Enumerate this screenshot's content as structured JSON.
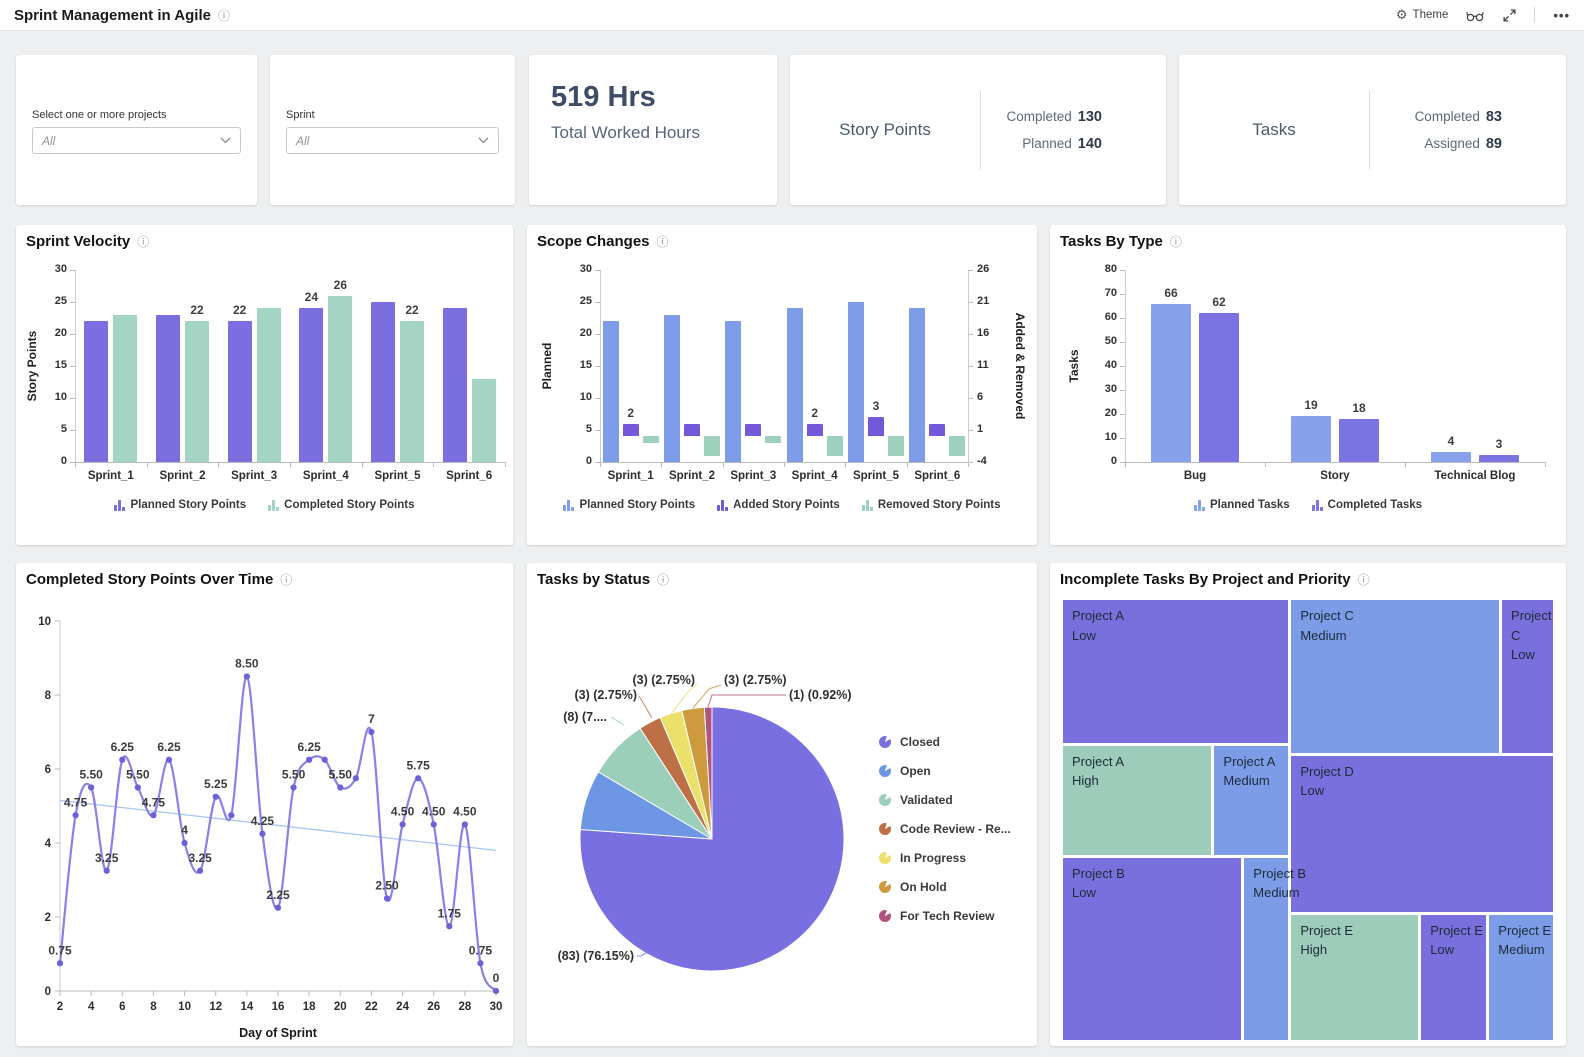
{
  "header": {
    "title": "Sprint Management in Agile",
    "actions": {
      "theme_label": "Theme"
    }
  },
  "filters": {
    "projects": {
      "label": "Select one or more projects",
      "value": "All"
    },
    "sprint": {
      "label": "Sprint",
      "value": "All"
    }
  },
  "kpis": {
    "worked_hours": {
      "value": "519 Hrs",
      "label": "Total Worked Hours"
    },
    "story_points": {
      "title": "Story Points",
      "completed_label": "Completed",
      "completed_value": "130",
      "planned_label": "Planned",
      "planned_value": "140"
    },
    "tasks": {
      "title": "Tasks",
      "completed_label": "Completed",
      "completed_value": "83",
      "assigned_label": "Assigned",
      "assigned_value": "89"
    }
  },
  "colors": {
    "background": "#edeff0",
    "card": "#ffffff",
    "accent_purple": "#7b6fe0",
    "accent_periwinkle": "#7f9ceb",
    "accent_green": "#a4d4c3",
    "treemap": {
      "purple": "#7a70dd",
      "blue": "#7c9ce8",
      "green": "#9dccba"
    }
  },
  "chart_data": [
    {
      "id": "sprint-velocity",
      "type": "bar",
      "title": "Sprint Velocity",
      "ylabel": "Story Points",
      "ylim": [
        0,
        30
      ],
      "yticks": [
        0,
        5,
        10,
        15,
        20,
        25,
        30
      ],
      "grid": false,
      "legend_position": "bottom",
      "categories": [
        "Sprint_1",
        "Sprint_2",
        "Sprint_3",
        "Sprint_4",
        "Sprint_5",
        "Sprint_6"
      ],
      "series": [
        {
          "name": "Planned Story Points",
          "color": "#7b6fe0",
          "values": [
            22,
            23,
            22,
            24,
            25,
            24
          ],
          "labels": [
            null,
            null,
            "22",
            "24",
            null,
            null
          ]
        },
        {
          "name": "Completed Story Points",
          "color": "#a4d4c3",
          "values": [
            23,
            22,
            24,
            26,
            22,
            13
          ],
          "labels": [
            null,
            "22",
            null,
            "26",
            "22",
            null
          ]
        }
      ]
    },
    {
      "id": "scope-changes",
      "type": "bar-dual",
      "title": "Scope Changes",
      "ylabel": "Planned",
      "y2label": "Added & Removed",
      "ylim": [
        0,
        30
      ],
      "yticks": [
        0,
        5,
        10,
        15,
        20,
        25,
        30
      ],
      "y2lim": [
        -4,
        26
      ],
      "y2ticks": [
        26,
        21,
        16,
        11,
        6,
        1,
        -4
      ],
      "grid": false,
      "legend_position": "bottom",
      "categories": [
        "Sprint_1",
        "Sprint_2",
        "Sprint_3",
        "Sprint_4",
        "Sprint_5",
        "Sprint_6"
      ],
      "series": [
        {
          "name": "Planned Story Points",
          "color": "#7f9ceb",
          "axis": "left",
          "values": [
            22,
            23,
            22,
            24,
            25,
            24
          ],
          "labels": [
            null,
            null,
            null,
            null,
            null,
            null
          ]
        },
        {
          "name": "Added Story Points",
          "color": "#7358da",
          "axis": "right",
          "values": [
            2,
            2,
            2,
            2,
            3,
            2
          ],
          "labels": [
            "2",
            null,
            null,
            "2",
            "3",
            null
          ]
        },
        {
          "name": "Removed Story Points",
          "color": "#9dd1bd",
          "axis": "right",
          "values": [
            -1,
            -3,
            -1,
            -3,
            -3,
            -3
          ],
          "labels": [
            null,
            null,
            null,
            null,
            null,
            null
          ]
        }
      ]
    },
    {
      "id": "tasks-by-type",
      "type": "bar",
      "title": "Tasks By Type",
      "ylabel": "Tasks",
      "ylim": [
        0,
        80
      ],
      "yticks": [
        0,
        10,
        20,
        30,
        40,
        50,
        60,
        70,
        80
      ],
      "grid": false,
      "legend_position": "bottom",
      "categories": [
        "Bug",
        "Story",
        "Technical Blog"
      ],
      "series": [
        {
          "name": "Planned Tasks",
          "color": "#87a2ea",
          "values": [
            66,
            19,
            4
          ],
          "labels": [
            "66",
            "19",
            "4"
          ]
        },
        {
          "name": "Completed Tasks",
          "color": "#7b73e1",
          "values": [
            62,
            18,
            3
          ],
          "labels": [
            "62",
            "18",
            "3"
          ]
        }
      ]
    },
    {
      "id": "completed-over-time",
      "type": "line",
      "title": "Completed Story Points Over Time",
      "xlabel": "Day of Sprint",
      "ylim": [
        0,
        10
      ],
      "yticks": [
        0,
        2,
        4,
        6,
        8,
        10
      ],
      "xlim": [
        2,
        30
      ],
      "xticks": [
        2,
        4,
        6,
        8,
        10,
        12,
        14,
        16,
        18,
        20,
        22,
        24,
        26,
        28,
        30
      ],
      "x": [
        2,
        3,
        4,
        5,
        6,
        7,
        8,
        9,
        10,
        11,
        12,
        13,
        14,
        15,
        16,
        17,
        18,
        19,
        20,
        21,
        22,
        23,
        24,
        25,
        26,
        27,
        28,
        29,
        30
      ],
      "values": [
        0.75,
        4.75,
        5.5,
        3.25,
        6.25,
        5.5,
        4.75,
        6.25,
        4,
        3.25,
        5.25,
        4.75,
        8.5,
        4.25,
        2.25,
        5.5,
        6.25,
        6.25,
        5.5,
        5.75,
        7,
        2.5,
        4.5,
        5.75,
        4.5,
        1.75,
        4.5,
        0.75,
        0
      ],
      "labels": [
        "0.75",
        "4.75",
        "5.50",
        "3.25",
        "6.25",
        "5.50",
        "4.75",
        "6.25",
        "4",
        "3.25",
        "5.25",
        null,
        "8.50",
        "4.25",
        "2.25",
        "5.50",
        "6.25",
        null,
        "5.50",
        null,
        "7",
        "2.50",
        "4.50",
        "5.75",
        "4.50",
        "1.75",
        "4.50",
        "0.75",
        "0"
      ],
      "line_color": "#8a80e6",
      "point_color": "#6b61d8",
      "trend": {
        "from": 5.15,
        "to": 3.8,
        "color": "#a9c7f1"
      }
    },
    {
      "id": "tasks-by-status",
      "type": "pie",
      "title": "Tasks by Status",
      "slices": [
        {
          "name": "Closed",
          "value": 83,
          "pct": 76.15,
          "color": "#7a6fe0",
          "callout": "(83) (76.15%)"
        },
        {
          "name": "Open",
          "value": 8,
          "pct": 7.34,
          "color": "#6d96e5",
          "callout": null
        },
        {
          "name": "Validated",
          "value": 8,
          "pct": 7.34,
          "color": "#9ccfba",
          "callout": "(8) (7...."
        },
        {
          "name": "Code Review - Re...",
          "value": 3,
          "pct": 2.75,
          "color": "#bd6f46",
          "callout": "(3) (2.75%)"
        },
        {
          "name": "In Progress",
          "value": 3,
          "pct": 2.75,
          "color": "#ebe069",
          "callout": "(3) (2.75%)"
        },
        {
          "name": "On Hold",
          "value": 3,
          "pct": 2.75,
          "color": "#cd9a3e",
          "callout": "(3) (2.75%)"
        },
        {
          "name": "For Tech Review",
          "value": 1,
          "pct": 0.92,
          "color": "#b2527e",
          "callout": "(1) (0.92%)"
        }
      ]
    },
    {
      "id": "incomplete-treemap",
      "type": "treemap",
      "title": "Incomplete Tasks By Project and Priority",
      "cells": [
        {
          "project": "Project A",
          "priority": "Low",
          "color": "purple",
          "rect": [
            0,
            0,
            0.46,
            0.325
          ]
        },
        {
          "project": "Project C",
          "priority": "Medium",
          "color": "blue",
          "rect": [
            0.466,
            0,
            0.424,
            0.348
          ]
        },
        {
          "project": "Project C",
          "priority": "Low",
          "color": "purple",
          "rect": [
            0.896,
            0,
            0.104,
            0.348
          ],
          "wrap": true
        },
        {
          "project": "Project A",
          "priority": "High",
          "color": "green",
          "rect": [
            0,
            0.331,
            0.303,
            0.249
          ]
        },
        {
          "project": "Project A",
          "priority": "Medium",
          "color": "blue",
          "rect": [
            0.309,
            0.331,
            0.151,
            0.249
          ]
        },
        {
          "project": "Project D",
          "priority": "Low",
          "color": "purple",
          "rect": [
            0.466,
            0.354,
            0.534,
            0.355
          ]
        },
        {
          "project": "Project B",
          "priority": "Low",
          "color": "purple",
          "rect": [
            0,
            0.586,
            0.364,
            0.414
          ]
        },
        {
          "project": "Project B",
          "priority": "Medium",
          "color": "blue",
          "rect": [
            0.37,
            0.586,
            0.09,
            0.414
          ]
        },
        {
          "project": "Project E",
          "priority": "High",
          "color": "green",
          "rect": [
            0.466,
            0.715,
            0.259,
            0.285
          ]
        },
        {
          "project": "Project E",
          "priority": "Low",
          "color": "purple",
          "rect": [
            0.731,
            0.715,
            0.133,
            0.285
          ]
        },
        {
          "project": "Project E",
          "priority": "Medium",
          "color": "blue",
          "rect": [
            0.87,
            0.715,
            0.13,
            0.285
          ]
        }
      ]
    }
  ]
}
